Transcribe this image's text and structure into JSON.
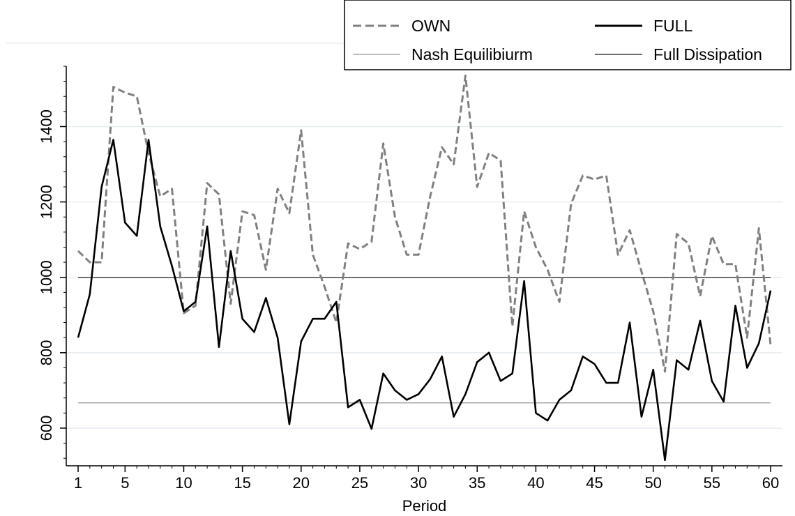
{
  "chart_data": {
    "type": "line",
    "xlabel": "Period",
    "ylabel": "",
    "xlim": [
      1,
      60
    ],
    "ylim": [
      500,
      1560
    ],
    "xticks": [
      1,
      5,
      10,
      15,
      20,
      25,
      30,
      35,
      40,
      45,
      50,
      55,
      60
    ],
    "yticks": [
      600,
      800,
      1000,
      1200,
      1400
    ],
    "y_minor_step": 40,
    "grid": "horizontal at major y ticks",
    "legend_position": "top-right",
    "x": [
      1,
      2,
      3,
      4,
      5,
      6,
      7,
      8,
      9,
      10,
      11,
      12,
      13,
      14,
      15,
      16,
      17,
      18,
      19,
      20,
      21,
      22,
      23,
      24,
      25,
      26,
      27,
      28,
      29,
      30,
      31,
      32,
      33,
      34,
      35,
      36,
      37,
      38,
      39,
      40,
      41,
      42,
      43,
      44,
      45,
      46,
      47,
      48,
      49,
      50,
      51,
      52,
      53,
      54,
      55,
      56,
      57,
      58,
      59,
      60
    ],
    "series": [
      {
        "name": "OWN",
        "style": "dashed",
        "color": "#808080",
        "values": [
          1070,
          1040,
          1040,
          1505,
          1490,
          1480,
          1330,
          1215,
          1235,
          905,
          925,
          1250,
          1220,
          930,
          1175,
          1165,
          1020,
          1235,
          1170,
          1390,
          1060,
          975,
          880,
          1090,
          1075,
          1095,
          1355,
          1160,
          1060,
          1060,
          1215,
          1345,
          1300,
          1535,
          1240,
          1330,
          1310,
          870,
          1175,
          1080,
          1020,
          935,
          1195,
          1270,
          1260,
          1270,
          1060,
          1125,
          1015,
          910,
          750,
          1115,
          1090,
          950,
          1110,
          1035,
          1035,
          840,
          1130,
          820
        ]
      },
      {
        "name": "FULL",
        "style": "solid",
        "color": "#000000",
        "values": [
          840,
          955,
          1240,
          1365,
          1145,
          1110,
          1365,
          1135,
          1030,
          910,
          935,
          1135,
          815,
          1070,
          890,
          855,
          945,
          840,
          610,
          830,
          890,
          890,
          935,
          655,
          675,
          598,
          745,
          700,
          675,
          690,
          730,
          790,
          630,
          690,
          775,
          800,
          725,
          745,
          990,
          640,
          620,
          675,
          700,
          790,
          770,
          720,
          720,
          880,
          630,
          755,
          515,
          780,
          755,
          885,
          725,
          670,
          925,
          760,
          825,
          965
        ]
      },
      {
        "name": "Nash Equilibiurm",
        "style": "reference",
        "color": "#a8a8a8",
        "value": 667
      },
      {
        "name": "Full Dissipation",
        "style": "reference",
        "color": "#404040",
        "value": 1000
      }
    ]
  }
}
